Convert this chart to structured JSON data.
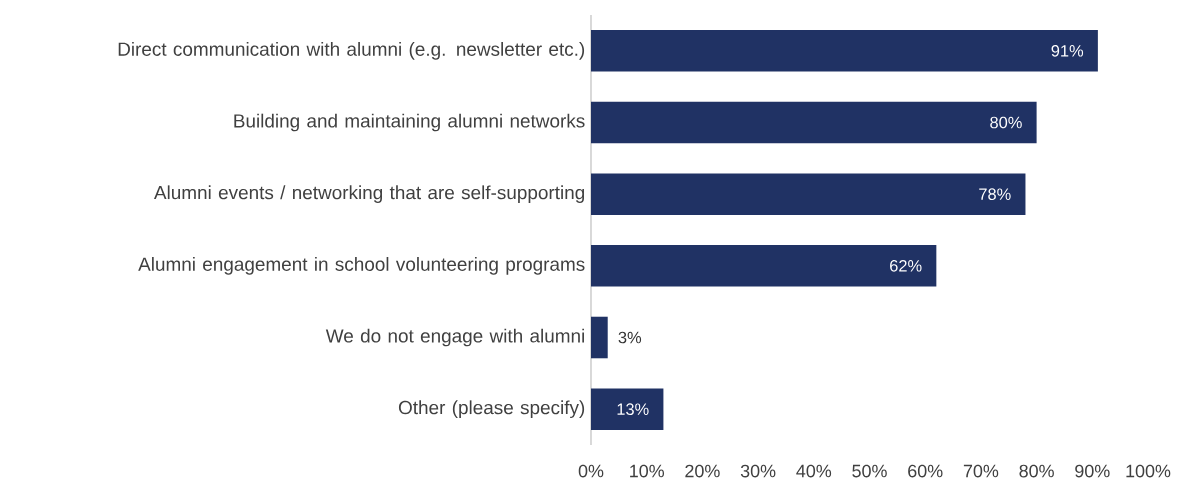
{
  "chart_data": {
    "type": "bar",
    "orientation": "horizontal",
    "categories": [
      "Direct communication with alumni (e.g. newsletter etc.)",
      "Building and maintaining alumni networks",
      "Alumni events / networking that are self-supporting",
      "Alumni engagement in school volunteering programs",
      "We do not engage with alumni",
      "Other (please specify)"
    ],
    "values": [
      91,
      80,
      78,
      62,
      3,
      13
    ],
    "value_labels": [
      "91%",
      "80%",
      "78%",
      "62%",
      "3%",
      "13%"
    ],
    "color": "#203264",
    "xlim": [
      0,
      100
    ],
    "xticks": [
      {
        "value": 0,
        "label": "0%"
      },
      {
        "value": 10,
        "label": "10%"
      },
      {
        "value": 20,
        "label": "20%"
      },
      {
        "value": 30,
        "label": "30%"
      },
      {
        "value": 40,
        "label": "40%"
      },
      {
        "value": 50,
        "label": "50%"
      },
      {
        "value": 60,
        "label": "60%"
      },
      {
        "value": 70,
        "label": "70%"
      },
      {
        "value": 80,
        "label": "80%"
      },
      {
        "value": 90,
        "label": "90%"
      },
      {
        "value": 100,
        "label": "100%"
      }
    ],
    "grid": false
  }
}
